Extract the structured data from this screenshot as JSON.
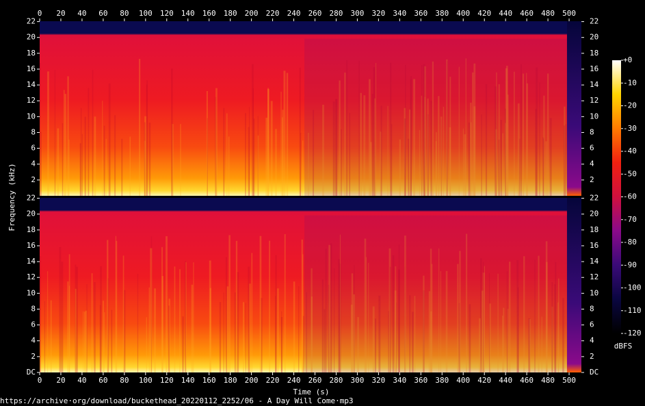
{
  "chart_data": {
    "type": "spectrogram",
    "x_label": "Time (s)",
    "y_label": "Frequency (kHz)",
    "xlim": [
      0,
      511.6
    ],
    "xticks": [
      0,
      20,
      40,
      60,
      80,
      100,
      120,
      140,
      160,
      180,
      200,
      220,
      240,
      260,
      280,
      300,
      320,
      340,
      360,
      380,
      400,
      420,
      440,
      460,
      480,
      500
    ],
    "channels": [
      {
        "ylim": [
          0,
          22.05
        ],
        "yticks": [
          2,
          4,
          6,
          8,
          10,
          12,
          14,
          16,
          18,
          20,
          22
        ]
      },
      {
        "ylim": [
          0,
          22.05
        ],
        "yticks": [
          {
            "value": 0,
            "label": "DC"
          },
          2,
          4,
          6,
          8,
          10,
          12,
          14,
          16,
          18,
          20,
          22
        ]
      }
    ],
    "colorbar": {
      "label": "dBFS",
      "lim": [
        -120,
        0
      ],
      "ticks": [
        {
          "value": 0,
          "label": "+0"
        },
        -10,
        -20,
        -30,
        -40,
        -50,
        -60,
        -70,
        -80,
        -90,
        -100,
        -110,
        -120
      ],
      "colors": [
        "#000000",
        "#0a0640",
        "#3a0a78",
        "#8a0a8a",
        "#d0103e",
        "#f02010",
        "#ff7a00",
        "#ffd400",
        "#ffffff"
      ]
    }
  },
  "footer": "https://archive·org/download/buckethead_20220112_2252/06 - A Day Will Come·mp3"
}
